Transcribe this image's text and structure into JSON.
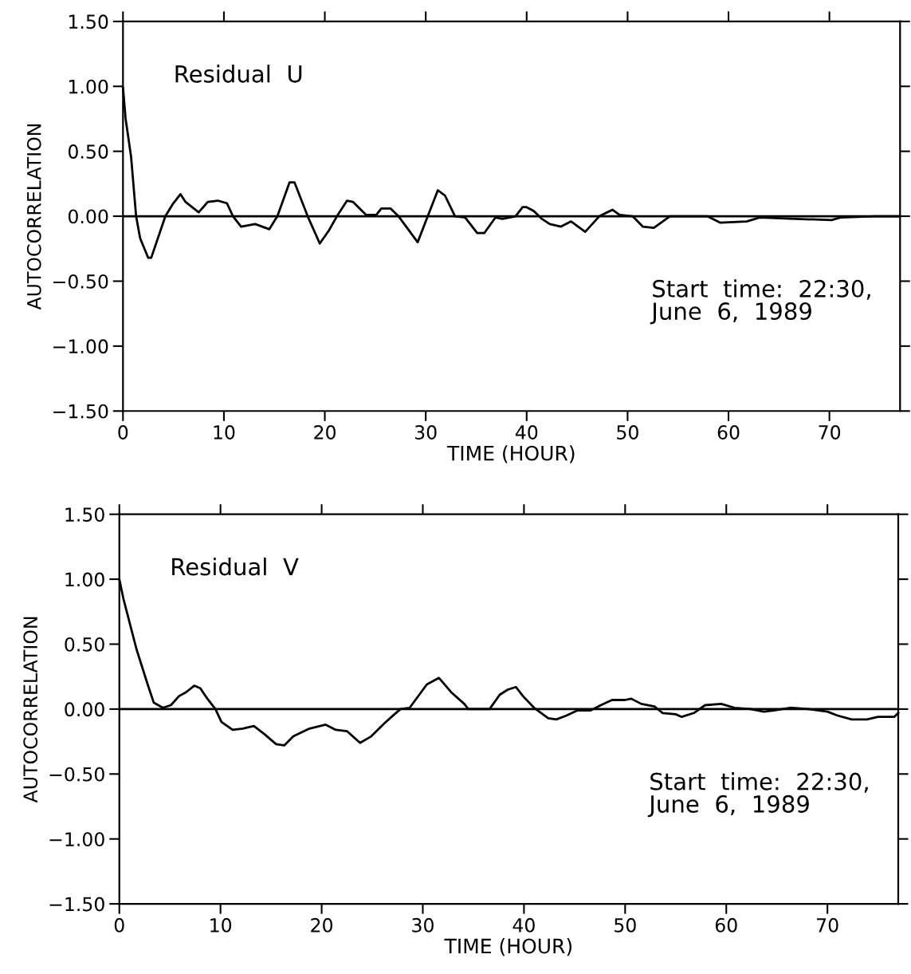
{
  "chart_data": [
    {
      "type": "line",
      "xlabel": "TIME (HOUR)",
      "ylabel": "AUTOCORRELATION",
      "xlim": [
        0,
        77
      ],
      "ylim": [
        -1.5,
        1.5
      ],
      "xticks": [
        0,
        10,
        20,
        30,
        40,
        50,
        60,
        70
      ],
      "yticks": [
        {
          "value": -1.5,
          "label": "−1.50"
        },
        {
          "value": -1.0,
          "label": "−1.00"
        },
        {
          "value": -0.5,
          "label": "−0.50"
        },
        {
          "value": 0,
          "label": "0.00"
        },
        {
          "value": 0.5,
          "label": "0.50"
        },
        {
          "value": 1.0,
          "label": "1.00"
        },
        {
          "value": 1.5,
          "label": "1.50"
        }
      ],
      "grid": false,
      "marker": "none",
      "line_style": "solid",
      "annotations": [
        "Residual  U",
        "Start  time:  22:30,\nJune  6,  1989"
      ],
      "ref_lines": [
        {
          "axis": "y",
          "value": 0,
          "color": "#000000"
        }
      ],
      "series": [
        {
          "color": "#000000",
          "x": [
            0,
            0.26,
            0.8,
            1.3,
            1.7,
            2.5,
            2.8,
            4.2,
            4.9,
            5.7,
            6.2,
            7.5,
            8.4,
            9.4,
            10.3,
            10.9,
            11.7,
            13.1,
            14.5,
            15.3,
            16.5,
            17.0,
            18.3,
            19.5,
            20.4,
            21.2,
            22.2,
            22.8,
            24.1,
            25.1,
            25.6,
            26.5,
            27.3,
            29.2,
            30.2,
            31.2,
            31.9,
            32.9,
            33.9,
            35.1,
            35.8,
            36.9,
            37.6,
            38.9,
            39.6,
            40.0,
            40.7,
            41.5,
            42.3,
            43.4,
            44.4,
            45.8,
            47.2,
            48.5,
            49.2,
            50.5,
            51.5,
            52.6,
            54.2,
            55.2,
            57.9,
            59.2,
            61.8,
            63.1,
            66.6,
            70.2,
            71.1,
            74.5,
            77.0
          ],
          "values": [
            0.99,
            0.75,
            0.46,
            0,
            -0.17,
            -0.32,
            -0.32,
            0,
            0.09,
            0.17,
            0.11,
            0.03,
            0.11,
            0.12,
            0.1,
            0,
            -0.08,
            -0.06,
            -0.1,
            0,
            0.26,
            0.26,
            0,
            -0.21,
            -0.11,
            0,
            0.12,
            0.11,
            0.01,
            0.01,
            0.06,
            0.06,
            0,
            -0.2,
            0,
            0.2,
            0.16,
            0,
            -0.01,
            -0.13,
            -0.13,
            -0.01,
            -0.02,
            0,
            0.07,
            0.07,
            0.04,
            -0.02,
            -0.06,
            -0.08,
            -0.04,
            -0.12,
            0,
            0.05,
            0.01,
            0,
            -0.08,
            -0.09,
            0,
            0,
            0,
            -0.05,
            -0.04,
            -0.01,
            -0.02,
            -0.03,
            -0.01,
            0,
            0
          ]
        }
      ]
    },
    {
      "type": "line",
      "xlabel": "TIME (HOUR)",
      "ylabel": "AUTOCORRELATION",
      "xlim": [
        0,
        77
      ],
      "ylim": [
        -1.5,
        1.5
      ],
      "xticks": [
        0,
        10,
        20,
        30,
        40,
        50,
        60,
        70
      ],
      "yticks": [
        {
          "value": -1.5,
          "label": "−1.50"
        },
        {
          "value": -1.0,
          "label": "−1.00"
        },
        {
          "value": -0.5,
          "label": "−0.50"
        },
        {
          "value": 0,
          "label": "0.00"
        },
        {
          "value": 0.5,
          "label": "0.50"
        },
        {
          "value": 1.0,
          "label": "1.00"
        },
        {
          "value": 1.5,
          "label": "1.50"
        }
      ],
      "grid": false,
      "marker": "none",
      "line_style": "solid",
      "annotations": [
        "Residual  V",
        "Start  time:  22:30,\nJune  6,  1989"
      ],
      "ref_lines": [
        {
          "axis": "y",
          "value": 0,
          "color": "#000000"
        }
      ],
      "series": [
        {
          "color": "#000000",
          "x": [
            0,
            0.4,
            1.7,
            2.8,
            3.4,
            4.3,
            5.1,
            5.9,
            6.6,
            7.4,
            8.0,
            8.7,
            9.5,
            10.1,
            11.2,
            12.2,
            13.3,
            14.3,
            15.5,
            16.3,
            17.2,
            18.8,
            20.4,
            21.4,
            22.5,
            23.8,
            24.9,
            26.2,
            27.2,
            27.8,
            28.7,
            30.4,
            31.6,
            32.8,
            34.1,
            34.5,
            36.6,
            37.6,
            38.4,
            39.2,
            39.9,
            41.0,
            42.4,
            43.2,
            44.2,
            45.3,
            46.6,
            47.6,
            48.7,
            50.0,
            50.6,
            51.6,
            52.9,
            53.7,
            55.0,
            55.6,
            56.8,
            57.9,
            59.5,
            60.8,
            62.4,
            63.7,
            64.7,
            66.3,
            68.1,
            70.0,
            71.0,
            72.4,
            73.9,
            75.0,
            76.6,
            77.0
          ],
          "values": [
            1.0,
            0.85,
            0.46,
            0.19,
            0.05,
            0.01,
            0.03,
            0.1,
            0.13,
            0.18,
            0.16,
            0.08,
            0,
            -0.1,
            -0.16,
            -0.15,
            -0.13,
            -0.19,
            -0.27,
            -0.28,
            -0.21,
            -0.15,
            -0.12,
            -0.16,
            -0.17,
            -0.26,
            -0.21,
            -0.11,
            -0.04,
            0,
            0.01,
            0.19,
            0.24,
            0.13,
            0.04,
            0,
            0,
            0.11,
            0.15,
            0.17,
            0.1,
            0.01,
            -0.07,
            -0.08,
            -0.05,
            -0.01,
            -0.01,
            0.03,
            0.07,
            0.07,
            0.08,
            0.04,
            0.02,
            -0.03,
            -0.04,
            -0.06,
            -0.03,
            0.03,
            0.04,
            0.01,
            0,
            -0.02,
            -0.01,
            0.01,
            0,
            -0.02,
            -0.05,
            -0.08,
            -0.08,
            -0.06,
            -0.06,
            -0.03
          ]
        }
      ]
    }
  ]
}
